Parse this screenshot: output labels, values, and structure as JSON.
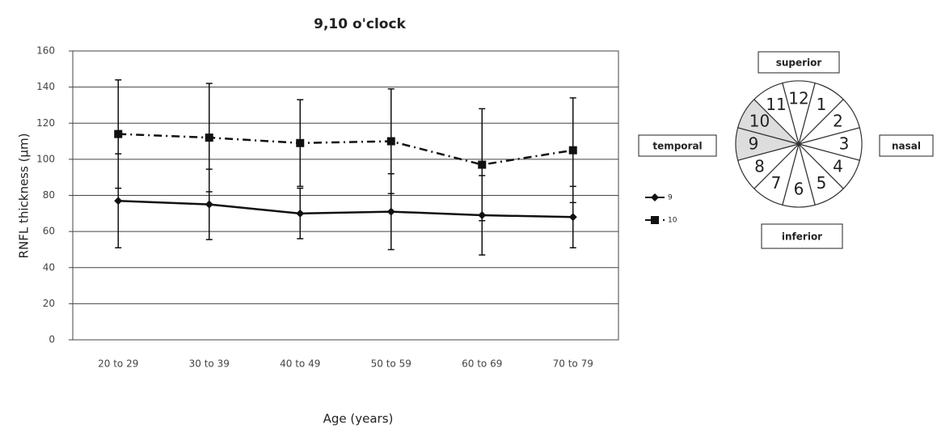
{
  "chart_data": {
    "type": "line",
    "title": "9,10  o'clock",
    "y_label": "RNFL  thickness (μm)",
    "x_label": "Age (years)",
    "categories": [
      "20 to 29",
      "30 to 39",
      "40 to 49",
      "50 to 59",
      "60 to 69",
      "70 to 79"
    ],
    "series": [
      {
        "name": "9",
        "color": "#111111",
        "line_style": "solid",
        "marker": "diamond",
        "values": [
          77,
          75,
          70,
          71,
          69,
          68
        ],
        "errors": [
          26,
          19.5,
          14,
          21,
          22,
          17
        ]
      },
      {
        "name": "10",
        "color": "#111111",
        "line_style": "dashdot",
        "marker": "square",
        "values": [
          114,
          112,
          109,
          110,
          97,
          105
        ],
        "errors": [
          30,
          30,
          24,
          29,
          31,
          29
        ]
      }
    ],
    "ylim": [
      0,
      160
    ],
    "yticks": [
      0,
      20,
      40,
      60,
      80,
      100,
      120,
      140,
      160
    ],
    "grid": true
  },
  "diagram": {
    "labels": {
      "superior": "superior",
      "temporal": "temporal",
      "nasal": "nasal",
      "inferior": "inferior"
    },
    "hours": [
      12,
      1,
      2,
      3,
      4,
      5,
      6,
      7,
      8,
      9,
      10,
      11
    ],
    "highlight": [
      9,
      10
    ]
  }
}
